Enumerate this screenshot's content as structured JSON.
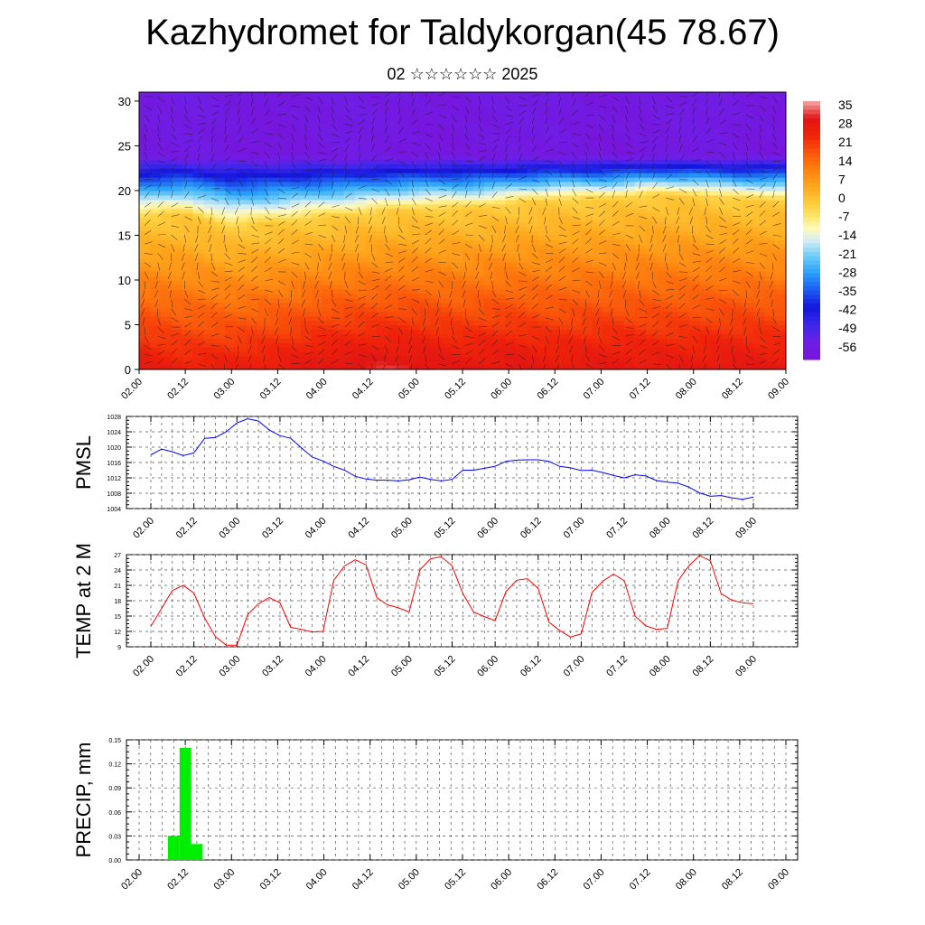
{
  "header": {
    "title": "Kazhydromet for Taldykorgan(45 78.67)",
    "subtitle": "02 ☆☆☆☆☆☆ 2025"
  },
  "time_labels": [
    "02.00",
    "02.12",
    "03.00",
    "03.12",
    "04.00",
    "04.12",
    "05.00",
    "05.12",
    "06.00",
    "06.12",
    "07.00",
    "07.12",
    "08.00",
    "08.12",
    "09.00"
  ],
  "chart_data": [
    {
      "type": "heatmap",
      "description_of_field": "temperature cross-section with wind vectors",
      "x_categories": [
        "02.00",
        "02.12",
        "03.00",
        "03.12",
        "04.00",
        "04.12",
        "05.00",
        "05.12",
        "06.00",
        "06.12",
        "07.00",
        "07.12",
        "08.00",
        "08.12",
        "09.00"
      ],
      "y_ticks": [
        0,
        5,
        10,
        15,
        20,
        25,
        30
      ],
      "ylim": [
        0,
        31
      ],
      "colorbar_labels": [
        "35",
        "28",
        "21",
        "14",
        "7",
        "0",
        "-7",
        "-14",
        "-21",
        "-28",
        "-35",
        "-42",
        "-49",
        "-56"
      ],
      "colorbar_range": [
        -63,
        42
      ],
      "zero_level_height": [
        17,
        17.5,
        16,
        16.5,
        17,
        17.5,
        18,
        18,
        18.5,
        19,
        19,
        19.5,
        19.5,
        19,
        19
      ],
      "surface_temp": [
        33,
        30,
        31,
        32,
        35,
        36,
        36,
        34,
        35,
        33,
        34,
        33,
        33,
        34,
        33
      ]
    },
    {
      "type": "line",
      "ylabel": "PMSL",
      "ylim": [
        1004,
        1028
      ],
      "y_ticks": [
        1004,
        1008,
        1012,
        1016,
        1020,
        1024,
        1028
      ],
      "line_color": "#0000ff",
      "values": [
        1018,
        1019.5,
        1018.8,
        1017.8,
        1018.5,
        1022.3,
        1022.5,
        1024,
        1026.3,
        1027.4,
        1026.8,
        1024.5,
        1023,
        1022.3,
        1019.8,
        1017.4,
        1016.4,
        1015,
        1014,
        1012.4,
        1011.7,
        1011.4,
        1011.4,
        1011.2,
        1011.5,
        1012.2,
        1011.6,
        1011.2,
        1011.6,
        1014,
        1014,
        1014.5,
        1015,
        1016.3,
        1016.6,
        1016.7,
        1016.7,
        1016.3,
        1015,
        1014.6,
        1013.9,
        1014,
        1013.4,
        1012.6,
        1012,
        1012.8,
        1012.5,
        1011.3,
        1010.9,
        1010.6,
        1009.6,
        1008.1,
        1007.2,
        1007.4,
        1006.8,
        1006.4,
        1007
      ]
    },
    {
      "type": "line",
      "ylabel": "TEMP at 2 M",
      "ylim": [
        9,
        27
      ],
      "y_ticks": [
        9,
        12,
        15,
        18,
        21,
        24,
        27
      ],
      "line_color": "#ff0000",
      "values": [
        13,
        16.5,
        20,
        21,
        19.5,
        14.6,
        11,
        9.3,
        9.3,
        15.3,
        17.4,
        18.6,
        17.6,
        12.8,
        12.4,
        11.9,
        12,
        22,
        24.8,
        26,
        25,
        18.6,
        17.2,
        16.6,
        15.8,
        24,
        26.2,
        26.6,
        24.8,
        19.4,
        15.8,
        14.9,
        14.1,
        19.8,
        22,
        22.3,
        20.4,
        13.8,
        12.2,
        10.9,
        11.5,
        19.6,
        21.8,
        23.2,
        21.9,
        15,
        13.1,
        12.4,
        12.6,
        21.9,
        24.8,
        26.8,
        25.8,
        19.4,
        18.1,
        17.6,
        17.4
      ]
    },
    {
      "type": "bar",
      "ylabel": "PRECIP, mm",
      "ylim": [
        0,
        0.15
      ],
      "y_ticks": [
        "0.00",
        "0.03",
        "0.06",
        "0.09",
        "0.12",
        "0.15"
      ],
      "bar_color": "#00ee00",
      "bars": [
        {
          "time": "02.09",
          "value": 0.03
        },
        {
          "time": "02.12",
          "value": 0.14
        },
        {
          "time": "02.15",
          "value": 0.02
        }
      ]
    }
  ]
}
